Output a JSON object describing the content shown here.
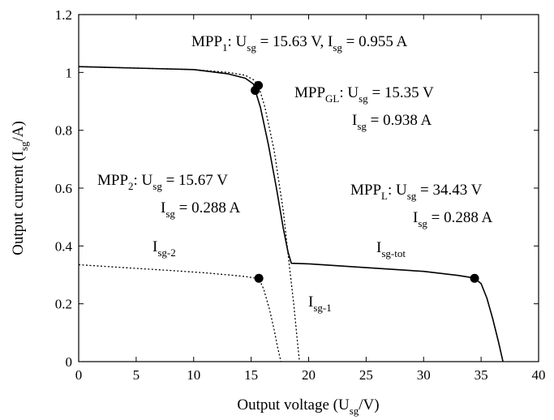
{
  "chart_data": {
    "type": "line",
    "title": "",
    "xlabel": {
      "main": "Output voltage (U",
      "sub": "sg",
      "tail": "/V)"
    },
    "ylabel": {
      "main": "Output current (I",
      "sub": "sg",
      "tail": "/A)"
    },
    "xlim": [
      0,
      40
    ],
    "ylim": [
      0,
      1.2
    ],
    "xticks": [
      0,
      5,
      10,
      15,
      20,
      25,
      30,
      35,
      40
    ],
    "yticks": [
      0,
      0.2,
      0.4,
      0.6,
      0.8,
      1,
      1.2
    ],
    "ytick_labels": [
      "0",
      "0.2",
      "0.4",
      "0.6",
      "0.8",
      "1",
      "1.2"
    ],
    "grid": false,
    "series": [
      {
        "name": "I_sg-tot",
        "style": "solid",
        "x": [
          0,
          5,
          10,
          13,
          14.5,
          15.2,
          15.35,
          15.8,
          16.5,
          17.2,
          17.8,
          18.2,
          18.5,
          20,
          25,
          30,
          33,
          34,
          34.43,
          35,
          35.5,
          36,
          36.5,
          36.9
        ],
        "y": [
          1.02,
          1.015,
          1.01,
          0.995,
          0.98,
          0.96,
          0.938,
          0.88,
          0.75,
          0.6,
          0.46,
          0.38,
          0.34,
          0.338,
          0.325,
          0.312,
          0.298,
          0.292,
          0.288,
          0.27,
          0.22,
          0.15,
          0.07,
          0
        ]
      },
      {
        "name": "I_sg-1",
        "style": "dotted",
        "x": [
          0,
          5,
          10,
          13,
          14.5,
          15.2,
          15.63,
          16.2,
          17,
          17.8,
          18.3,
          18.7,
          19.0,
          19.2
        ],
        "y": [
          1.02,
          1.015,
          1.01,
          1.0,
          0.99,
          0.975,
          0.955,
          0.88,
          0.73,
          0.52,
          0.34,
          0.2,
          0.08,
          0
        ]
      },
      {
        "name": "I_sg-2",
        "style": "dotted",
        "x": [
          0,
          4,
          8,
          11,
          13,
          14.5,
          15.2,
          15.67,
          16.1,
          16.6,
          17.0,
          17.3,
          17.5,
          17.6
        ],
        "y": [
          0.335,
          0.325,
          0.315,
          0.307,
          0.3,
          0.294,
          0.29,
          0.288,
          0.25,
          0.18,
          0.11,
          0.05,
          0.015,
          0
        ]
      }
    ],
    "markers": [
      {
        "name": "MPP_1",
        "x": 15.63,
        "y": 0.955
      },
      {
        "name": "MPP_GL",
        "x": 15.35,
        "y": 0.938
      },
      {
        "name": "MPP_2",
        "x": 15.67,
        "y": 0.288
      },
      {
        "name": "MPP_L",
        "x": 34.43,
        "y": 0.288
      }
    ],
    "annotations": {
      "mpp1": {
        "m1": "MPP",
        "s1": "1",
        "m2": ": U",
        "s2": "sg",
        "m3": " = 15.63 V, I",
        "s3": "sg",
        "m4": " = 0.955 A"
      },
      "mppgl_a": {
        "m1": "MPP",
        "s1": "GL",
        "m2": ": U",
        "s2": "sg",
        "m3": " = 15.35 V"
      },
      "mppgl_b": {
        "m1": "I",
        "s1": "sg",
        "m2": " = 0.938 A"
      },
      "mpp2_a": {
        "m1": "MPP",
        "s1": "2",
        "m2": ": U",
        "s2": "sg",
        "m3": " = 15.67 V"
      },
      "mpp2_b": {
        "m1": "I",
        "s1": "sg",
        "m2": " = 0.288 A"
      },
      "mppl_a": {
        "m1": "MPP",
        "s1": "L",
        "m2": ": U",
        "s2": "sg",
        "m3": " = 34.43 V"
      },
      "mppl_b": {
        "m1": "I",
        "s1": "sg",
        "m2": " = 0.288 A"
      },
      "lbl_sg2": {
        "m1": "I",
        "s1": "sg-2"
      },
      "lbl_sgtot": {
        "m1": "I",
        "s1": "sg-tot"
      },
      "lbl_sg1": {
        "m1": "I",
        "s1": "sg-1"
      }
    }
  }
}
